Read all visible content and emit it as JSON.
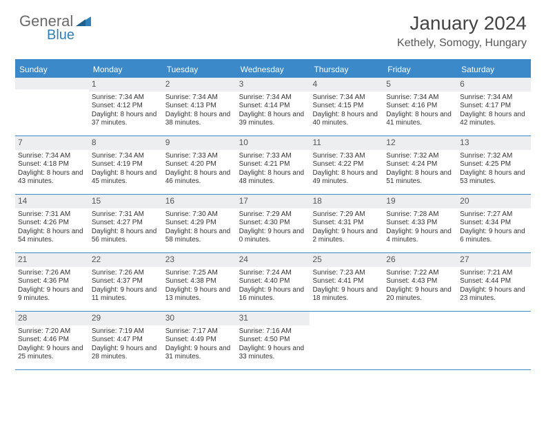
{
  "logo": {
    "text1": "General",
    "text2": "Blue"
  },
  "title": "January 2024",
  "location": "Kethely, Somogy, Hungary",
  "day_headers": [
    "Sunday",
    "Monday",
    "Tuesday",
    "Wednesday",
    "Thursday",
    "Friday",
    "Saturday"
  ],
  "colors": {
    "accent": "#3b89c9",
    "daynum_bg": "#eceeef",
    "logo_gray": "#6a6a6a",
    "logo_blue": "#2f7fb8"
  },
  "weeks": [
    [
      {
        "day": "",
        "sunrise": "",
        "sunset": "",
        "daylight": ""
      },
      {
        "day": "1",
        "sunrise": "Sunrise: 7:34 AM",
        "sunset": "Sunset: 4:12 PM",
        "daylight": "Daylight: 8 hours and 37 minutes."
      },
      {
        "day": "2",
        "sunrise": "Sunrise: 7:34 AM",
        "sunset": "Sunset: 4:13 PM",
        "daylight": "Daylight: 8 hours and 38 minutes."
      },
      {
        "day": "3",
        "sunrise": "Sunrise: 7:34 AM",
        "sunset": "Sunset: 4:14 PM",
        "daylight": "Daylight: 8 hours and 39 minutes."
      },
      {
        "day": "4",
        "sunrise": "Sunrise: 7:34 AM",
        "sunset": "Sunset: 4:15 PM",
        "daylight": "Daylight: 8 hours and 40 minutes."
      },
      {
        "day": "5",
        "sunrise": "Sunrise: 7:34 AM",
        "sunset": "Sunset: 4:16 PM",
        "daylight": "Daylight: 8 hours and 41 minutes."
      },
      {
        "day": "6",
        "sunrise": "Sunrise: 7:34 AM",
        "sunset": "Sunset: 4:17 PM",
        "daylight": "Daylight: 8 hours and 42 minutes."
      }
    ],
    [
      {
        "day": "7",
        "sunrise": "Sunrise: 7:34 AM",
        "sunset": "Sunset: 4:18 PM",
        "daylight": "Daylight: 8 hours and 43 minutes."
      },
      {
        "day": "8",
        "sunrise": "Sunrise: 7:34 AM",
        "sunset": "Sunset: 4:19 PM",
        "daylight": "Daylight: 8 hours and 45 minutes."
      },
      {
        "day": "9",
        "sunrise": "Sunrise: 7:33 AM",
        "sunset": "Sunset: 4:20 PM",
        "daylight": "Daylight: 8 hours and 46 minutes."
      },
      {
        "day": "10",
        "sunrise": "Sunrise: 7:33 AM",
        "sunset": "Sunset: 4:21 PM",
        "daylight": "Daylight: 8 hours and 48 minutes."
      },
      {
        "day": "11",
        "sunrise": "Sunrise: 7:33 AM",
        "sunset": "Sunset: 4:22 PM",
        "daylight": "Daylight: 8 hours and 49 minutes."
      },
      {
        "day": "12",
        "sunrise": "Sunrise: 7:32 AM",
        "sunset": "Sunset: 4:24 PM",
        "daylight": "Daylight: 8 hours and 51 minutes."
      },
      {
        "day": "13",
        "sunrise": "Sunrise: 7:32 AM",
        "sunset": "Sunset: 4:25 PM",
        "daylight": "Daylight: 8 hours and 53 minutes."
      }
    ],
    [
      {
        "day": "14",
        "sunrise": "Sunrise: 7:31 AM",
        "sunset": "Sunset: 4:26 PM",
        "daylight": "Daylight: 8 hours and 54 minutes."
      },
      {
        "day": "15",
        "sunrise": "Sunrise: 7:31 AM",
        "sunset": "Sunset: 4:27 PM",
        "daylight": "Daylight: 8 hours and 56 minutes."
      },
      {
        "day": "16",
        "sunrise": "Sunrise: 7:30 AM",
        "sunset": "Sunset: 4:29 PM",
        "daylight": "Daylight: 8 hours and 58 minutes."
      },
      {
        "day": "17",
        "sunrise": "Sunrise: 7:29 AM",
        "sunset": "Sunset: 4:30 PM",
        "daylight": "Daylight: 9 hours and 0 minutes."
      },
      {
        "day": "18",
        "sunrise": "Sunrise: 7:29 AM",
        "sunset": "Sunset: 4:31 PM",
        "daylight": "Daylight: 9 hours and 2 minutes."
      },
      {
        "day": "19",
        "sunrise": "Sunrise: 7:28 AM",
        "sunset": "Sunset: 4:33 PM",
        "daylight": "Daylight: 9 hours and 4 minutes."
      },
      {
        "day": "20",
        "sunrise": "Sunrise: 7:27 AM",
        "sunset": "Sunset: 4:34 PM",
        "daylight": "Daylight: 9 hours and 6 minutes."
      }
    ],
    [
      {
        "day": "21",
        "sunrise": "Sunrise: 7:26 AM",
        "sunset": "Sunset: 4:36 PM",
        "daylight": "Daylight: 9 hours and 9 minutes."
      },
      {
        "day": "22",
        "sunrise": "Sunrise: 7:26 AM",
        "sunset": "Sunset: 4:37 PM",
        "daylight": "Daylight: 9 hours and 11 minutes."
      },
      {
        "day": "23",
        "sunrise": "Sunrise: 7:25 AM",
        "sunset": "Sunset: 4:38 PM",
        "daylight": "Daylight: 9 hours and 13 minutes."
      },
      {
        "day": "24",
        "sunrise": "Sunrise: 7:24 AM",
        "sunset": "Sunset: 4:40 PM",
        "daylight": "Daylight: 9 hours and 16 minutes."
      },
      {
        "day": "25",
        "sunrise": "Sunrise: 7:23 AM",
        "sunset": "Sunset: 4:41 PM",
        "daylight": "Daylight: 9 hours and 18 minutes."
      },
      {
        "day": "26",
        "sunrise": "Sunrise: 7:22 AM",
        "sunset": "Sunset: 4:43 PM",
        "daylight": "Daylight: 9 hours and 20 minutes."
      },
      {
        "day": "27",
        "sunrise": "Sunrise: 7:21 AM",
        "sunset": "Sunset: 4:44 PM",
        "daylight": "Daylight: 9 hours and 23 minutes."
      }
    ],
    [
      {
        "day": "28",
        "sunrise": "Sunrise: 7:20 AM",
        "sunset": "Sunset: 4:46 PM",
        "daylight": "Daylight: 9 hours and 25 minutes."
      },
      {
        "day": "29",
        "sunrise": "Sunrise: 7:19 AM",
        "sunset": "Sunset: 4:47 PM",
        "daylight": "Daylight: 9 hours and 28 minutes."
      },
      {
        "day": "30",
        "sunrise": "Sunrise: 7:17 AM",
        "sunset": "Sunset: 4:49 PM",
        "daylight": "Daylight: 9 hours and 31 minutes."
      },
      {
        "day": "31",
        "sunrise": "Sunrise: 7:16 AM",
        "sunset": "Sunset: 4:50 PM",
        "daylight": "Daylight: 9 hours and 33 minutes."
      },
      {
        "day": "",
        "sunrise": "",
        "sunset": "",
        "daylight": ""
      },
      {
        "day": "",
        "sunrise": "",
        "sunset": "",
        "daylight": ""
      },
      {
        "day": "",
        "sunrise": "",
        "sunset": "",
        "daylight": ""
      }
    ]
  ]
}
